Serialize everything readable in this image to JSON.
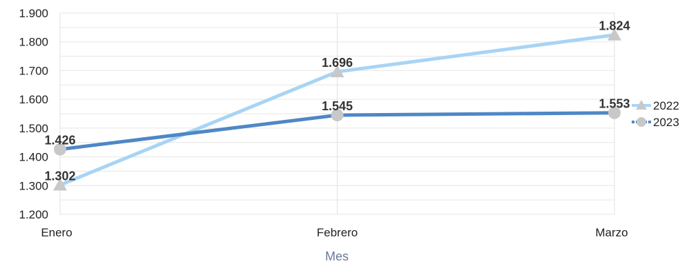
{
  "chart_data": {
    "type": "line",
    "categories": [
      "Enero",
      "Febrero",
      "Marzo"
    ],
    "xlabel": "Mes",
    "ylabel": "",
    "ylim": [
      1200,
      1900
    ],
    "yticks": [
      1200,
      1300,
      1400,
      1500,
      1600,
      1700,
      1800,
      1900
    ],
    "ytick_labels": [
      "1.200",
      "1.300",
      "1.400",
      "1.500",
      "1.600",
      "1.700",
      "1.800",
      "1.900"
    ],
    "grid": true,
    "legend": "right",
    "series": [
      {
        "name": "2022",
        "values": [
          1302,
          1696,
          1824
        ],
        "labels": [
          "1.302",
          "1.696",
          "1.824"
        ],
        "color": "#a8d4f5",
        "marker": "triangle",
        "marker_color": "#c8c8c8"
      },
      {
        "name": "2023",
        "values": [
          1426,
          1545,
          1553
        ],
        "labels": [
          "1.426",
          "1.545",
          "1.553"
        ],
        "color": "#4f87c6",
        "marker": "circle",
        "marker_color": "#c8c8c8"
      }
    ]
  }
}
